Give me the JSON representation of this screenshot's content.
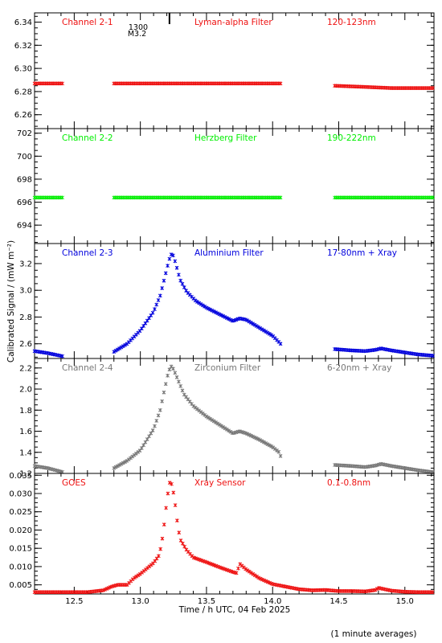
{
  "figure": {
    "xlabel": "Time / h UTC, 04 Feb 2025",
    "ylabel": "Calibrated Signal / (mW m⁻²)",
    "footer": "(1 minute averages)",
    "flare_marker": {
      "time_label": "1300",
      "class_label": "M3.2",
      "x": 13.22
    }
  },
  "colors": {
    "red": "#ee1111",
    "green": "#00ee00",
    "blue": "#0000dd",
    "gray": "#777777",
    "axis": "#000000"
  },
  "chart_data": [
    {
      "type": "scatter",
      "channel": "Channel 2-1",
      "filter": "Lyman-alpha Filter",
      "band": "120-123nm",
      "color_key": "red",
      "xlim": [
        12.2,
        15.22
      ],
      "ylim": [
        6.248,
        6.348
      ],
      "yticks": [
        6.26,
        6.28,
        6.3,
        6.32,
        6.34
      ],
      "ytick_labels": [
        "6.26",
        "6.28",
        "6.30",
        "6.32",
        "6.34"
      ],
      "segments": [
        {
          "x": [
            12.2,
            12.42
          ],
          "y": [
            6.287,
            6.287
          ]
        },
        {
          "x": [
            12.8,
            14.07
          ],
          "y": [
            6.287,
            6.287
          ]
        },
        {
          "x": [
            14.47,
            14.7,
            14.9,
            15.22
          ],
          "y": [
            6.285,
            6.284,
            6.283,
            6.283
          ]
        }
      ]
    },
    {
      "type": "scatter",
      "channel": "Channel 2-2",
      "filter": "Herzberg Filter",
      "band": "190-222nm",
      "color_key": "green",
      "xlim": [
        12.2,
        15.22
      ],
      "ylim": [
        692.4,
        702.4
      ],
      "yticks": [
        694,
        696,
        698,
        700,
        702
      ],
      "ytick_labels": [
        "694",
        "696",
        "698",
        "700",
        "702"
      ],
      "segments": [
        {
          "x": [
            12.2,
            12.42
          ],
          "y": [
            696.4,
            696.4
          ]
        },
        {
          "x": [
            12.8,
            14.07
          ],
          "y": [
            696.4,
            696.4
          ]
        },
        {
          "x": [
            14.47,
            15.22
          ],
          "y": [
            696.4,
            696.4
          ]
        }
      ]
    },
    {
      "type": "scatter",
      "channel": "Channel 2-3",
      "filter": "Aluminium Filter",
      "band": "17-80nm + Xray",
      "color_key": "blue",
      "xlim": [
        12.2,
        15.22
      ],
      "ylim": [
        2.49,
        3.35
      ],
      "yticks": [
        2.6,
        2.8,
        3.0,
        3.2
      ],
      "ytick_labels": [
        "2.6",
        "2.8",
        "3.0",
        "3.2"
      ],
      "segments": [
        {
          "x": [
            12.2,
            12.3,
            12.42
          ],
          "y": [
            2.545,
            2.53,
            2.505
          ]
        },
        {
          "x": [
            12.8,
            12.9,
            13.0,
            13.1,
            13.15,
            13.18,
            13.21,
            13.23,
            13.25,
            13.27,
            13.3,
            13.35,
            13.42,
            13.5,
            13.6,
            13.7,
            13.75,
            13.8,
            13.9,
            14.0,
            14.07
          ],
          "y": [
            2.54,
            2.6,
            2.7,
            2.84,
            2.96,
            3.08,
            3.2,
            3.27,
            3.26,
            3.19,
            3.08,
            2.99,
            2.92,
            2.87,
            2.82,
            2.77,
            2.79,
            2.78,
            2.72,
            2.66,
            2.59
          ]
        },
        {
          "x": [
            14.47,
            14.6,
            14.7,
            14.78,
            14.82,
            14.9,
            15.0,
            15.1,
            15.22
          ],
          "y": [
            2.56,
            2.55,
            2.545,
            2.555,
            2.565,
            2.55,
            2.535,
            2.52,
            2.51
          ]
        }
      ]
    },
    {
      "type": "scatter",
      "channel": "Channel 2-4",
      "filter": "Zirconium Filter",
      "band": "6-20nm + Xray",
      "color_key": "gray",
      "xlim": [
        12.2,
        15.22
      ],
      "ylim": [
        1.2,
        2.29
      ],
      "yticks": [
        1.2,
        1.4,
        1.6,
        1.8,
        2.0,
        2.2
      ],
      "ytick_labels": [
        "1.2",
        "1.4",
        "1.6",
        "1.8",
        "2.0",
        "2.2"
      ],
      "segments": [
        {
          "x": [
            12.2,
            12.3,
            12.42
          ],
          "y": [
            1.27,
            1.25,
            1.21
          ]
        },
        {
          "x": [
            12.8,
            12.9,
            13.0,
            13.1,
            13.15,
            13.18,
            13.21,
            13.23,
            13.25,
            13.28,
            13.33,
            13.4,
            13.5,
            13.6,
            13.7,
            13.75,
            13.8,
            13.9,
            14.0,
            14.05,
            14.07
          ],
          "y": [
            1.25,
            1.32,
            1.42,
            1.62,
            1.8,
            1.98,
            2.15,
            2.22,
            2.19,
            2.1,
            1.95,
            1.84,
            1.74,
            1.66,
            1.58,
            1.6,
            1.58,
            1.52,
            1.45,
            1.4,
            1.33
          ]
        },
        {
          "x": [
            14.47,
            14.6,
            14.7,
            14.78,
            14.82,
            14.9,
            15.0,
            15.1,
            15.22
          ],
          "y": [
            1.28,
            1.27,
            1.26,
            1.275,
            1.29,
            1.27,
            1.25,
            1.23,
            1.21
          ]
        }
      ]
    },
    {
      "type": "scatter",
      "channel": "GOES",
      "filter": "Xray Sensor",
      "band": "0.1-0.8nm",
      "color_key": "red",
      "xlim": [
        12.2,
        15.22
      ],
      "ylim": [
        0.0025,
        0.0355
      ],
      "yticks": [
        0.005,
        0.01,
        0.015,
        0.02,
        0.025,
        0.03,
        0.035
      ],
      "ytick_labels": [
        "0.005",
        "0.010",
        "0.015",
        "0.020",
        "0.025",
        "0.030",
        "0.035"
      ],
      "segments": [
        {
          "x": [
            12.2,
            12.4,
            12.6,
            12.72,
            12.78,
            12.83,
            12.9,
            12.95,
            13.0,
            13.05,
            13.1,
            13.14,
            13.16,
            13.18,
            13.2,
            13.22,
            13.24,
            13.26,
            13.28,
            13.3,
            13.35,
            13.4,
            13.5,
            13.6,
            13.7,
            13.73,
            13.75,
            13.8,
            13.9,
            14.0,
            14.1,
            14.2,
            14.3,
            14.4,
            14.5,
            14.6,
            14.7,
            14.78,
            14.8,
            14.82,
            14.9,
            15.0,
            15.1,
            15.22
          ],
          "y": [
            0.003,
            0.003,
            0.003,
            0.0035,
            0.0045,
            0.005,
            0.005,
            0.0068,
            0.008,
            0.0095,
            0.011,
            0.013,
            0.016,
            0.0215,
            0.028,
            0.033,
            0.0325,
            0.028,
            0.022,
            0.0175,
            0.0145,
            0.0125,
            0.0112,
            0.0098,
            0.0085,
            0.0082,
            0.0108,
            0.0092,
            0.0068,
            0.0052,
            0.0045,
            0.0038,
            0.0035,
            0.0036,
            0.0033,
            0.0033,
            0.0032,
            0.0036,
            0.0042,
            0.004,
            0.0034,
            0.0031,
            0.003,
            0.003
          ]
        }
      ]
    }
  ],
  "xaxis": {
    "ticks": [
      12.5,
      13.0,
      13.5,
      14.0,
      14.5,
      15.0
    ],
    "tick_labels": [
      "12.5",
      "13.0",
      "13.5",
      "14.0",
      "14.5",
      "15.0"
    ],
    "minor_step": 0.1
  }
}
